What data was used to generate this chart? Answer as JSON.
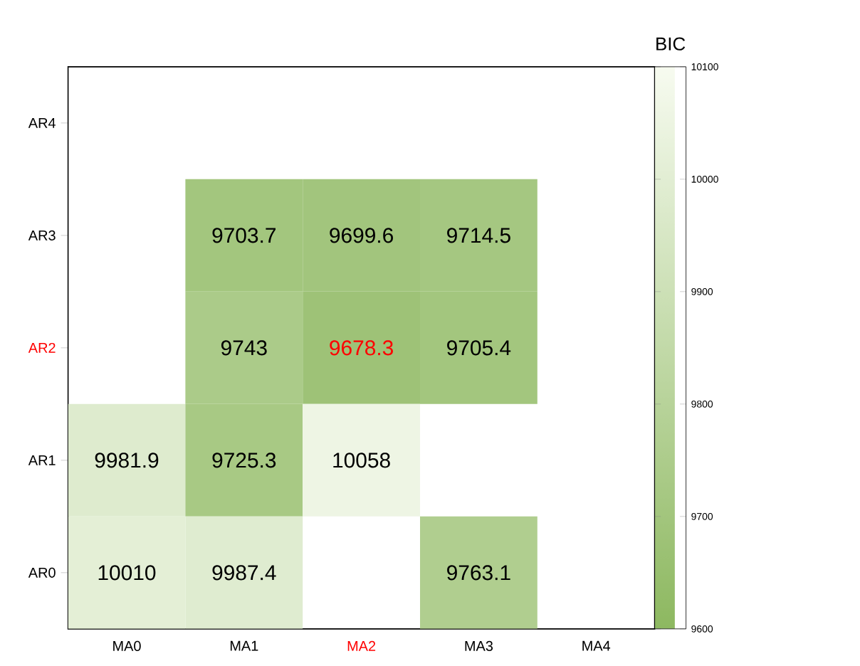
{
  "chart_data": {
    "type": "heatmap",
    "clabel": "BIC",
    "data_labels": true,
    "categories": [
      "MA0",
      "MA1",
      "MA2",
      "MA3",
      "MA4"
    ],
    "y_categories": [
      "AR4",
      "AR3",
      "AR2",
      "AR1",
      "AR0"
    ],
    "cells": [
      [
        null,
        null,
        null,
        null,
        null
      ],
      [
        null,
        9703.7,
        9699.6,
        9714.5,
        null
      ],
      [
        null,
        9743,
        9678.3,
        9705.4,
        null
      ],
      [
        9981.9,
        9725.3,
        10058,
        null,
        null
      ],
      [
        10010,
        9987.4,
        null,
        9763.1,
        null
      ]
    ],
    "clim": [
      9600,
      10100
    ],
    "cticks": [
      9600,
      9700,
      9800,
      9900,
      10000,
      10100
    ]
  }
}
